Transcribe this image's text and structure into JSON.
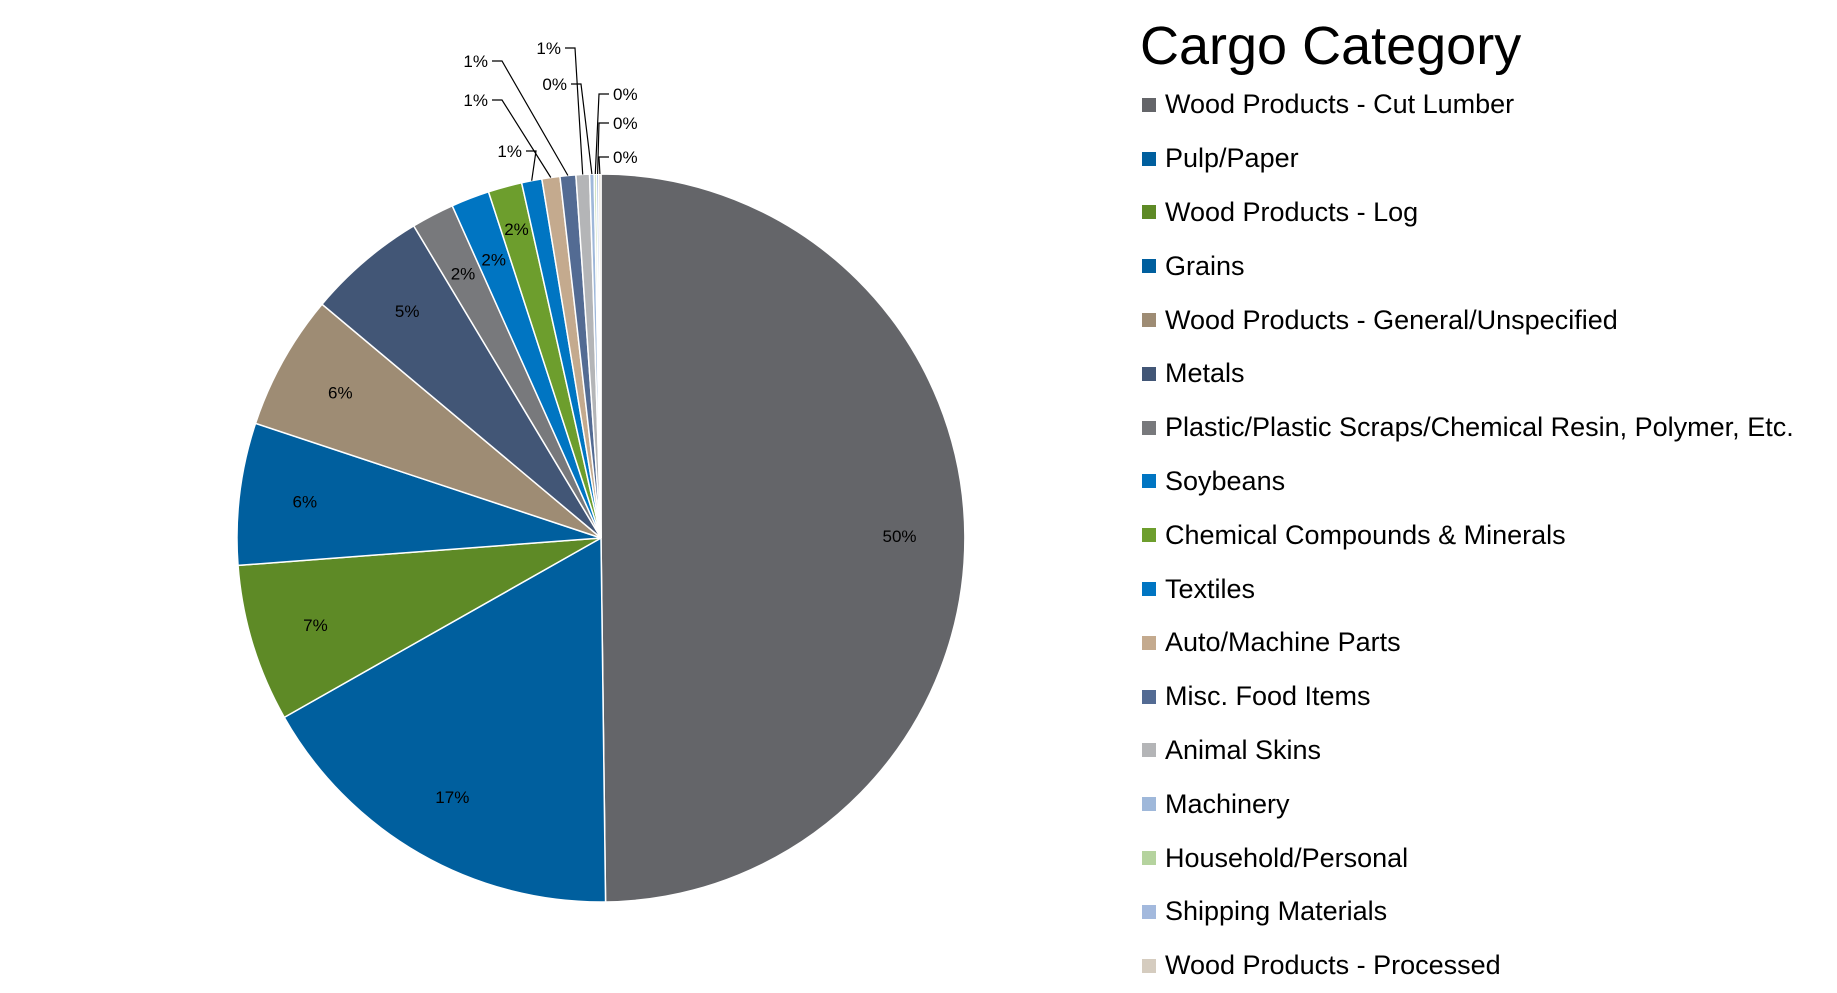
{
  "chart_data": {
    "type": "pie",
    "legend_title": "Cargo Category",
    "legend_position": "right",
    "slices": [
      {
        "label": "Wood Products - Cut Lumber",
        "value": 49.8,
        "display": "50%",
        "color": "#646569"
      },
      {
        "label": "Pulp/Paper",
        "value": 17.0,
        "display": "17%",
        "color": "#005f9e"
      },
      {
        "label": "Wood Products - Log",
        "value": 7.0,
        "display": "7%",
        "color": "#5e8a26"
      },
      {
        "label": "Grains",
        "value": 6.3,
        "display": "6%",
        "color": "#005f9e"
      },
      {
        "label": "Wood Products - General/Unspecified",
        "value": 6.0,
        "display": "6%",
        "color": "#9e8c74"
      },
      {
        "label": "Metals",
        "value": 5.3,
        "display": "5%",
        "color": "#425676"
      },
      {
        "label": "Plastic/Plastic Scraps/Chemical Resin, Polymer, Etc.",
        "value": 1.9,
        "display": "2%",
        "color": "#78797c"
      },
      {
        "label": "Soybeans",
        "value": 1.7,
        "display": "2%",
        "color": "#0075c2"
      },
      {
        "label": "Chemical Compounds & Minerals",
        "value": 1.5,
        "display": "2%",
        "color": "#6d9e2d"
      },
      {
        "label": "Textiles",
        "value": 0.9,
        "display": "1%",
        "color": "#0075c2"
      },
      {
        "label": "Auto/Machine Parts",
        "value": 0.8,
        "display": "1%",
        "color": "#c4aa8e"
      },
      {
        "label": "Misc. Food Items",
        "value": 0.7,
        "display": "1%",
        "color": "#536b93"
      },
      {
        "label": "Animal Skins",
        "value": 0.6,
        "display": "1%",
        "color": "#b4b5b7"
      },
      {
        "label": "Machinery",
        "value": 0.2,
        "display": "0%",
        "color": "#9fb8da"
      },
      {
        "label": "Household/Personal",
        "value": 0.1,
        "display": "0%",
        "color": "#b5d39e"
      },
      {
        "label": "Shipping Materials",
        "value": 0.1,
        "display": "0%",
        "color": "#a3b9dd"
      },
      {
        "label": "Wood Products - Processed",
        "value": 0.1,
        "display": "0%",
        "color": "#d5ccbf"
      }
    ]
  }
}
